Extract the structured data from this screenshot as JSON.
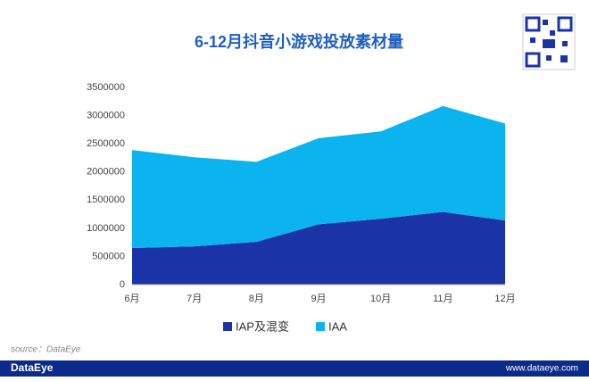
{
  "chart_data": {
    "type": "area",
    "stacked": true,
    "title": "6-12月抖音小游戏投放素材量",
    "categories": [
      "6月",
      "7月",
      "8月",
      "9月",
      "10月",
      "11月",
      "12月"
    ],
    "series": [
      {
        "name": "IAP及混变",
        "color": "#1a34a8",
        "values": [
          650000,
          680000,
          760000,
          1070000,
          1170000,
          1290000,
          1140000
        ]
      },
      {
        "name": "IAA",
        "color": "#0bb4ef",
        "values": [
          1740000,
          1580000,
          1420000,
          1530000,
          1550000,
          1880000,
          1720000
        ]
      }
    ],
    "ylim": [
      0,
      3500000
    ],
    "yticks": [
      0,
      500000,
      1000000,
      1500000,
      2000000,
      2500000,
      3000000,
      3500000
    ],
    "grid": false,
    "legend": "bottom",
    "source": "source：DataEye"
  },
  "footer": {
    "brand": "DataEye",
    "url": "www.dataeye.com"
  }
}
